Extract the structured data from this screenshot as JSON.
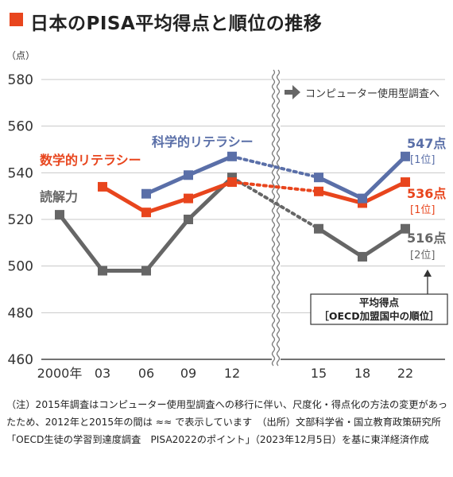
{
  "title": "日本のPISA平均得点と順位の推移",
  "chart_data": {
    "type": "line",
    "y_unit_label": "（点）",
    "ylim": [
      460,
      580
    ],
    "y_ticks": [
      "460",
      "480",
      "500",
      "520",
      "540",
      "560",
      "580"
    ],
    "categories": [
      "2000年",
      "03",
      "06",
      "09",
      "12",
      "15",
      "18",
      "22"
    ],
    "axis_break_note": "コンピューター使用型調査へ",
    "series": [
      {
        "name": "読解力",
        "color": "#666666",
        "marker": "square",
        "values": [
          522,
          498,
          498,
          520,
          538,
          516,
          504,
          516
        ],
        "end_label": "516点",
        "end_rank": "[2位]"
      },
      {
        "name": "数学的リテラシー",
        "color": "#e8451d",
        "marker": "square",
        "values": [
          null,
          534,
          523,
          529,
          536,
          532,
          527,
          536
        ],
        "end_label": "536点",
        "end_rank": "[1位]"
      },
      {
        "name": "科学的リテラシー",
        "color": "#5a6fa8",
        "marker": "square",
        "values": [
          null,
          null,
          531,
          539,
          547,
          538,
          529,
          547
        ],
        "end_label": "547点",
        "end_rank": "[1位]"
      }
    ],
    "annotation_box": {
      "line1": "平均得点",
      "line2": "［OECD加盟国中の順位］"
    },
    "grid": true
  },
  "note": {
    "text": "（注）2015年調査はコンピューター使用型調査への移行に伴い、尺度化・得点化の方法の変更があったため、2012年と2015年の間は ≈≈ で表示しています　（出所）文部科学省・国立教育政策研究所「OECD生徒の学習到達度調査　PISA2022のポイント」（2023年12月5日）を基に東洋経済作成"
  }
}
